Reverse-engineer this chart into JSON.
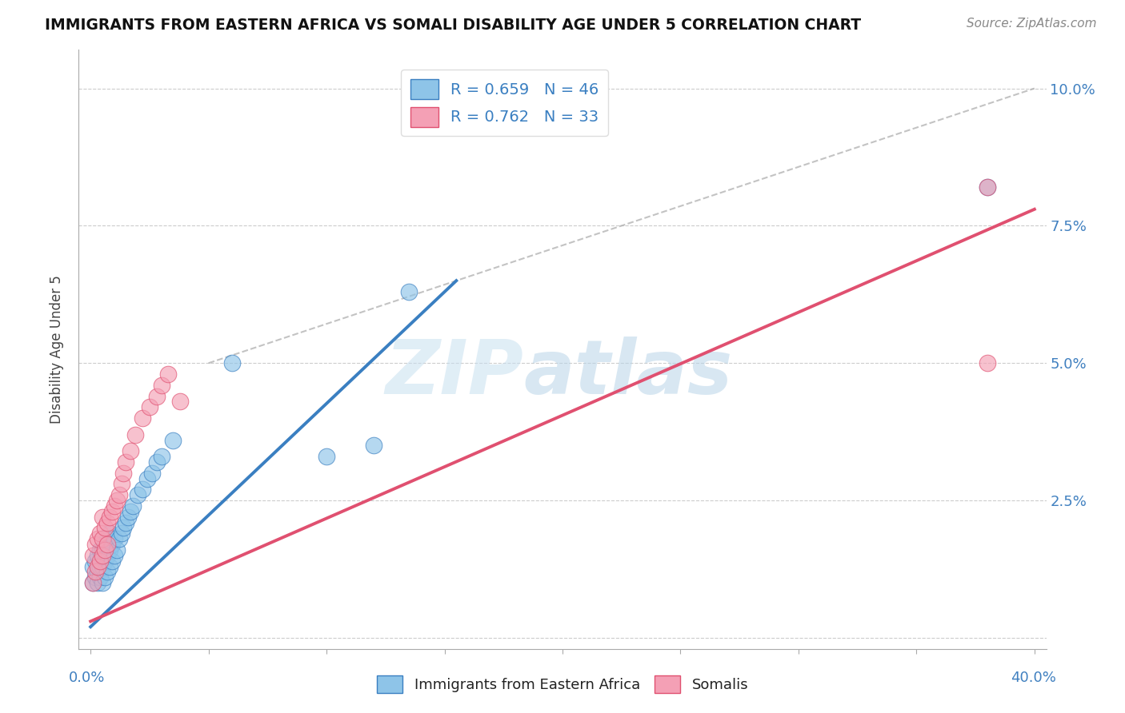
{
  "title": "IMMIGRANTS FROM EASTERN AFRICA VS SOMALI DISABILITY AGE UNDER 5 CORRELATION CHART",
  "source": "Source: ZipAtlas.com",
  "ylabel": "Disability Age Under 5",
  "ytick_labels": [
    "",
    "2.5%",
    "5.0%",
    "7.5%",
    "10.0%"
  ],
  "ytick_values": [
    0,
    0.025,
    0.05,
    0.075,
    0.1
  ],
  "xlim": [
    0,
    0.4
  ],
  "ylim": [
    0,
    0.105
  ],
  "legend_r1": "R = 0.659",
  "legend_n1": "N = 46",
  "legend_r2": "R = 0.762",
  "legend_n2": "N = 33",
  "color_blue": "#8ec4e8",
  "color_pink": "#f4a0b5",
  "color_blue_line": "#3a7fc1",
  "color_pink_line": "#e05070",
  "color_diag": "#aaaaaa",
  "background": "#ffffff",
  "blue_scatter_x": [
    0.001,
    0.001,
    0.002,
    0.002,
    0.003,
    0.003,
    0.003,
    0.004,
    0.004,
    0.004,
    0.005,
    0.005,
    0.005,
    0.006,
    0.006,
    0.006,
    0.007,
    0.007,
    0.007,
    0.008,
    0.008,
    0.008,
    0.009,
    0.009,
    0.01,
    0.01,
    0.011,
    0.012,
    0.013,
    0.014,
    0.015,
    0.016,
    0.017,
    0.018,
    0.02,
    0.022,
    0.024,
    0.026,
    0.028,
    0.03,
    0.035,
    0.06,
    0.1,
    0.12,
    0.135,
    0.38
  ],
  "blue_scatter_y": [
    0.01,
    0.013,
    0.011,
    0.014,
    0.01,
    0.012,
    0.015,
    0.011,
    0.013,
    0.016,
    0.01,
    0.013,
    0.016,
    0.011,
    0.014,
    0.017,
    0.012,
    0.015,
    0.018,
    0.013,
    0.016,
    0.019,
    0.014,
    0.017,
    0.015,
    0.018,
    0.016,
    0.018,
    0.019,
    0.02,
    0.021,
    0.022,
    0.023,
    0.024,
    0.026,
    0.027,
    0.029,
    0.03,
    0.032,
    0.033,
    0.036,
    0.05,
    0.033,
    0.035,
    0.063,
    0.082
  ],
  "pink_scatter_x": [
    0.001,
    0.001,
    0.002,
    0.002,
    0.003,
    0.003,
    0.004,
    0.004,
    0.005,
    0.005,
    0.005,
    0.006,
    0.006,
    0.007,
    0.007,
    0.008,
    0.009,
    0.01,
    0.011,
    0.012,
    0.013,
    0.014,
    0.015,
    0.017,
    0.019,
    0.022,
    0.025,
    0.028,
    0.03,
    0.033,
    0.038,
    0.38,
    0.38
  ],
  "pink_scatter_y": [
    0.01,
    0.015,
    0.012,
    0.017,
    0.013,
    0.018,
    0.014,
    0.019,
    0.015,
    0.018,
    0.022,
    0.016,
    0.02,
    0.017,
    0.021,
    0.022,
    0.023,
    0.024,
    0.025,
    0.026,
    0.028,
    0.03,
    0.032,
    0.034,
    0.037,
    0.04,
    0.042,
    0.044,
    0.046,
    0.048,
    0.043,
    0.082,
    0.05
  ],
  "blue_line_x": [
    0.0,
    0.155
  ],
  "blue_line_y": [
    0.002,
    0.065
  ],
  "pink_line_x": [
    0.0,
    0.4
  ],
  "pink_line_y": [
    0.003,
    0.078
  ],
  "diag_line_x": [
    0.05,
    0.4
  ],
  "diag_line_y": [
    0.05,
    0.1
  ]
}
